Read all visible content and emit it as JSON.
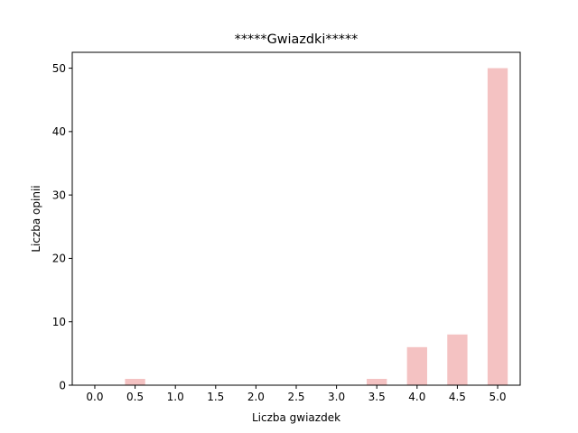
{
  "chart_data": {
    "type": "bar",
    "title": "*****Gwiazdki*****",
    "xlabel": "Liczba gwiazdek",
    "ylabel": "Liczba opinii",
    "x": [
      0.0,
      0.5,
      1.0,
      1.5,
      2.0,
      2.5,
      3.0,
      3.5,
      4.0,
      4.5,
      5.0
    ],
    "x_tick_labels": [
      "0.0",
      "0.5",
      "1.0",
      "1.5",
      "2.0",
      "2.5",
      "3.0",
      "3.5",
      "4.0",
      "4.5",
      "5.0"
    ],
    "values": [
      0,
      1,
      0,
      0,
      0,
      0,
      0,
      1,
      6,
      8,
      50
    ],
    "xlim": [
      -0.28,
      5.28
    ],
    "ylim": [
      0,
      52.5
    ],
    "y_ticks": [
      0,
      10,
      20,
      30,
      40,
      50
    ],
    "bar_width": 0.25,
    "bar_color": "#f4c2c2",
    "grid": false,
    "legend": "none"
  }
}
